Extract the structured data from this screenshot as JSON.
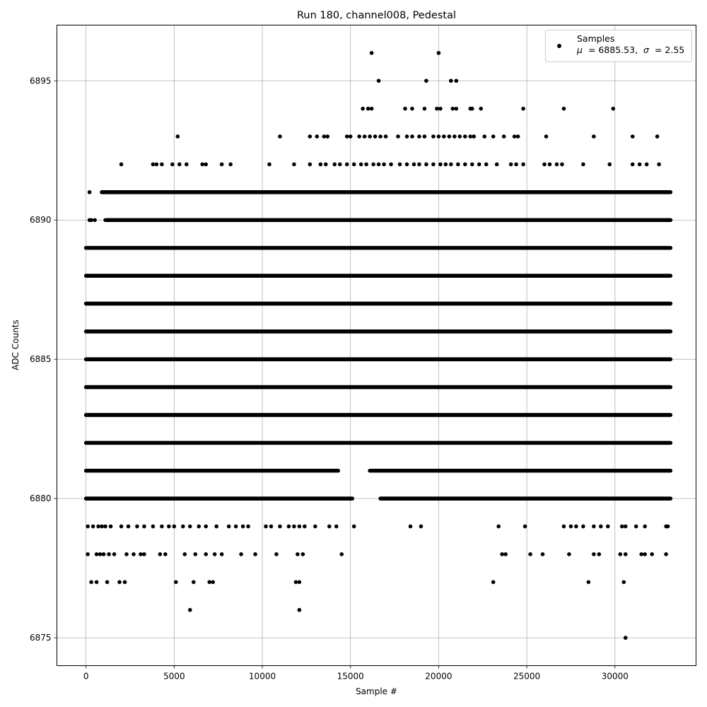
{
  "chart_data": {
    "type": "scatter",
    "title": "Run 180, channel008, Pedestal",
    "xlabel": "Sample #",
    "ylabel": "ADC Counts",
    "xlim": [
      -1650,
      34600
    ],
    "ylim": [
      6874,
      6897
    ],
    "xticks": [
      0,
      5000,
      10000,
      15000,
      20000,
      25000,
      30000
    ],
    "yticks": [
      6875,
      6880,
      6885,
      6890,
      6895
    ],
    "grid": true,
    "legend_position": "top-right",
    "n_samples": 33150,
    "series": [
      {
        "name": "Samples",
        "color": "#000000",
        "dense_levels": [
          6880,
          6881,
          6882,
          6883,
          6884,
          6885,
          6886,
          6887,
          6888,
          6889,
          6890,
          6891
        ],
        "gaps": {
          "6881": [
            [
              14300,
              16100
            ]
          ],
          "6880": [
            [
              15100,
              16700
            ]
          ],
          "6891": [
            [
              0,
              900
            ]
          ],
          "6890": [
            [
              0,
              1200
            ]
          ]
        },
        "sparse_points": [
          [
            300,
            6877
          ],
          [
            600,
            6877
          ],
          [
            1200,
            6877
          ],
          [
            1900,
            6877
          ],
          [
            2200,
            6877
          ],
          [
            5100,
            6877
          ],
          [
            6100,
            6877
          ],
          [
            7000,
            6877
          ],
          [
            7200,
            6877
          ],
          [
            11900,
            6877
          ],
          [
            12100,
            6877
          ],
          [
            23100,
            6877
          ],
          [
            28500,
            6877
          ],
          [
            30500,
            6877
          ],
          [
            100,
            6878
          ],
          [
            600,
            6878
          ],
          [
            800,
            6878
          ],
          [
            1000,
            6878
          ],
          [
            1300,
            6878
          ],
          [
            1600,
            6878
          ],
          [
            2300,
            6878
          ],
          [
            2700,
            6878
          ],
          [
            3100,
            6878
          ],
          [
            3300,
            6878
          ],
          [
            4200,
            6878
          ],
          [
            4500,
            6878
          ],
          [
            5600,
            6878
          ],
          [
            6200,
            6878
          ],
          [
            6800,
            6878
          ],
          [
            7300,
            6878
          ],
          [
            7700,
            6878
          ],
          [
            8800,
            6878
          ],
          [
            9600,
            6878
          ],
          [
            10800,
            6878
          ],
          [
            12000,
            6878
          ],
          [
            12300,
            6878
          ],
          [
            14500,
            6878
          ],
          [
            23600,
            6878
          ],
          [
            23800,
            6878
          ],
          [
            25200,
            6878
          ],
          [
            25900,
            6878
          ],
          [
            27400,
            6878
          ],
          [
            28800,
            6878
          ],
          [
            29100,
            6878
          ],
          [
            30300,
            6878
          ],
          [
            30600,
            6878
          ],
          [
            31500,
            6878
          ],
          [
            31700,
            6878
          ],
          [
            32100,
            6878
          ],
          [
            32900,
            6878
          ],
          [
            100,
            6879
          ],
          [
            400,
            6879
          ],
          [
            700,
            6879
          ],
          [
            900,
            6879
          ],
          [
            1100,
            6879
          ],
          [
            1400,
            6879
          ],
          [
            2000,
            6879
          ],
          [
            2400,
            6879
          ],
          [
            2900,
            6879
          ],
          [
            3300,
            6879
          ],
          [
            3800,
            6879
          ],
          [
            4300,
            6879
          ],
          [
            4700,
            6879
          ],
          [
            5000,
            6879
          ],
          [
            5500,
            6879
          ],
          [
            5900,
            6879
          ],
          [
            6400,
            6879
          ],
          [
            6800,
            6879
          ],
          [
            7400,
            6879
          ],
          [
            8100,
            6879
          ],
          [
            8500,
            6879
          ],
          [
            8900,
            6879
          ],
          [
            9200,
            6879
          ],
          [
            10200,
            6879
          ],
          [
            10500,
            6879
          ],
          [
            11000,
            6879
          ],
          [
            11500,
            6879
          ],
          [
            11800,
            6879
          ],
          [
            12100,
            6879
          ],
          [
            12400,
            6879
          ],
          [
            13000,
            6879
          ],
          [
            13800,
            6879
          ],
          [
            14200,
            6879
          ],
          [
            15200,
            6879
          ],
          [
            18400,
            6879
          ],
          [
            19000,
            6879
          ],
          [
            23400,
            6879
          ],
          [
            24900,
            6879
          ],
          [
            27100,
            6879
          ],
          [
            27500,
            6879
          ],
          [
            27800,
            6879
          ],
          [
            28200,
            6879
          ],
          [
            28800,
            6879
          ],
          [
            29200,
            6879
          ],
          [
            29600,
            6879
          ],
          [
            30400,
            6879
          ],
          [
            30600,
            6879
          ],
          [
            31200,
            6879
          ],
          [
            31700,
            6879
          ],
          [
            32900,
            6879
          ],
          [
            33000,
            6879
          ],
          [
            200,
            6890
          ],
          [
            300,
            6890
          ],
          [
            500,
            6890
          ],
          [
            1100,
            6890
          ],
          [
            200,
            6891
          ],
          [
            900,
            6891
          ],
          [
            1200,
            6891
          ],
          [
            1700,
            6891
          ],
          [
            2000,
            6892
          ],
          [
            3800,
            6892
          ],
          [
            4000,
            6892
          ],
          [
            4300,
            6892
          ],
          [
            4900,
            6892
          ],
          [
            5300,
            6892
          ],
          [
            5700,
            6892
          ],
          [
            6600,
            6892
          ],
          [
            6800,
            6892
          ],
          [
            7700,
            6892
          ],
          [
            8200,
            6892
          ],
          [
            10400,
            6892
          ],
          [
            11800,
            6892
          ],
          [
            12700,
            6892
          ],
          [
            13300,
            6892
          ],
          [
            13600,
            6892
          ],
          [
            14100,
            6892
          ],
          [
            14400,
            6892
          ],
          [
            14800,
            6892
          ],
          [
            15200,
            6892
          ],
          [
            15600,
            6892
          ],
          [
            15900,
            6892
          ],
          [
            16300,
            6892
          ],
          [
            16600,
            6892
          ],
          [
            16900,
            6892
          ],
          [
            17300,
            6892
          ],
          [
            17800,
            6892
          ],
          [
            18200,
            6892
          ],
          [
            18600,
            6892
          ],
          [
            18900,
            6892
          ],
          [
            19300,
            6892
          ],
          [
            19700,
            6892
          ],
          [
            20100,
            6892
          ],
          [
            20400,
            6892
          ],
          [
            20700,
            6892
          ],
          [
            21100,
            6892
          ],
          [
            21500,
            6892
          ],
          [
            21900,
            6892
          ],
          [
            22300,
            6892
          ],
          [
            22700,
            6892
          ],
          [
            23300,
            6892
          ],
          [
            24100,
            6892
          ],
          [
            24400,
            6892
          ],
          [
            24800,
            6892
          ],
          [
            26000,
            6892
          ],
          [
            26300,
            6892
          ],
          [
            26700,
            6892
          ],
          [
            27000,
            6892
          ],
          [
            28200,
            6892
          ],
          [
            29700,
            6892
          ],
          [
            31000,
            6892
          ],
          [
            31400,
            6892
          ],
          [
            31800,
            6892
          ],
          [
            32500,
            6892
          ],
          [
            5200,
            6893
          ],
          [
            11000,
            6893
          ],
          [
            12700,
            6893
          ],
          [
            13100,
            6893
          ],
          [
            13500,
            6893
          ],
          [
            13700,
            6893
          ],
          [
            14800,
            6893
          ],
          [
            15000,
            6893
          ],
          [
            15500,
            6893
          ],
          [
            15800,
            6893
          ],
          [
            16100,
            6893
          ],
          [
            16400,
            6893
          ],
          [
            16700,
            6893
          ],
          [
            17000,
            6893
          ],
          [
            17700,
            6893
          ],
          [
            18200,
            6893
          ],
          [
            18500,
            6893
          ],
          [
            18900,
            6893
          ],
          [
            19200,
            6893
          ],
          [
            19700,
            6893
          ],
          [
            20000,
            6893
          ],
          [
            20300,
            6893
          ],
          [
            20600,
            6893
          ],
          [
            20900,
            6893
          ],
          [
            21200,
            6893
          ],
          [
            21500,
            6893
          ],
          [
            21800,
            6893
          ],
          [
            22000,
            6893
          ],
          [
            22600,
            6893
          ],
          [
            23100,
            6893
          ],
          [
            23700,
            6893
          ],
          [
            24300,
            6893
          ],
          [
            24500,
            6893
          ],
          [
            26100,
            6893
          ],
          [
            28800,
            6893
          ],
          [
            31000,
            6893
          ],
          [
            32400,
            6893
          ],
          [
            15700,
            6894
          ],
          [
            16000,
            6894
          ],
          [
            16200,
            6894
          ],
          [
            18100,
            6894
          ],
          [
            18500,
            6894
          ],
          [
            19200,
            6894
          ],
          [
            19900,
            6894
          ],
          [
            20100,
            6894
          ],
          [
            20800,
            6894
          ],
          [
            21000,
            6894
          ],
          [
            21800,
            6894
          ],
          [
            21900,
            6894
          ],
          [
            22400,
            6894
          ],
          [
            24800,
            6894
          ],
          [
            27100,
            6894
          ],
          [
            29900,
            6894
          ],
          [
            16600,
            6895
          ],
          [
            19300,
            6895
          ],
          [
            20700,
            6895
          ],
          [
            21000,
            6895
          ],
          [
            16200,
            6896
          ],
          [
            20000,
            6896
          ],
          [
            5900,
            6876
          ],
          [
            12100,
            6876
          ],
          [
            30600,
            6875
          ]
        ]
      }
    ],
    "legend": {
      "label": "Samples",
      "stats": "μ = 6885.53, σ = 2.55",
      "mu_label": "μ",
      "mu_value": "= 6885.53,",
      "sigma_label": "σ",
      "sigma_value": "= 2.55"
    }
  }
}
